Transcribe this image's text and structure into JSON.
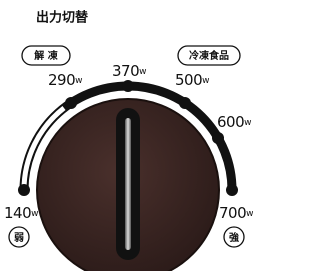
{
  "title": "出力切替",
  "presets": [
    {
      "label": "解 凍"
    },
    {
      "label": "冷凍食品"
    }
  ],
  "settings": [
    {
      "label": "140",
      "unit": "w"
    },
    {
      "label": "290",
      "unit": "w"
    },
    {
      "label": "370",
      "unit": "w"
    },
    {
      "label": "500",
      "unit": "w"
    },
    {
      "label": "600",
      "unit": "w"
    },
    {
      "label": "700",
      "unit": "w"
    }
  ],
  "ends": {
    "low": "弱",
    "high": "強"
  }
}
